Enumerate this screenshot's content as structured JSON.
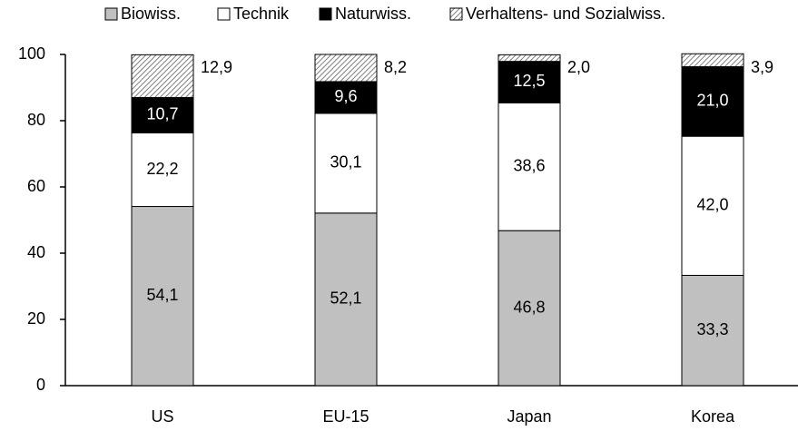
{
  "chart_data": {
    "type": "stacked_bar",
    "categories": [
      "US",
      "EU-15",
      "Japan",
      "Korea"
    ],
    "series": [
      {
        "name": "Biowiss.",
        "color": "#c0c0c0",
        "values": [
          54.1,
          52.1,
          46.8,
          33.3
        ],
        "value_labels": [
          "54,1",
          "52,1",
          "46,8",
          "33,3"
        ]
      },
      {
        "name": "Technik",
        "color": "#ffffff",
        "values": [
          22.2,
          30.1,
          38.6,
          42.0
        ],
        "value_labels": [
          "22,2",
          "30,1",
          "38,6",
          "42,0"
        ]
      },
      {
        "name": "Naturwiss.",
        "color": "#000000",
        "values": [
          10.7,
          9.6,
          12.5,
          21.0
        ],
        "value_labels": [
          "10,7",
          "9,6",
          "12,5",
          "21,0"
        ]
      },
      {
        "name": "Verhaltens- und Sozialwiss.",
        "color": "#808080",
        "hatch": true,
        "values": [
          12.9,
          8.2,
          2.0,
          3.9
        ],
        "value_labels": [
          "12,9",
          "8,2",
          "2,0",
          "3,9"
        ]
      }
    ],
    "ylim": [
      0,
      100
    ],
    "yticks": [
      0,
      20,
      40,
      60,
      80,
      100
    ],
    "legend": "top"
  }
}
